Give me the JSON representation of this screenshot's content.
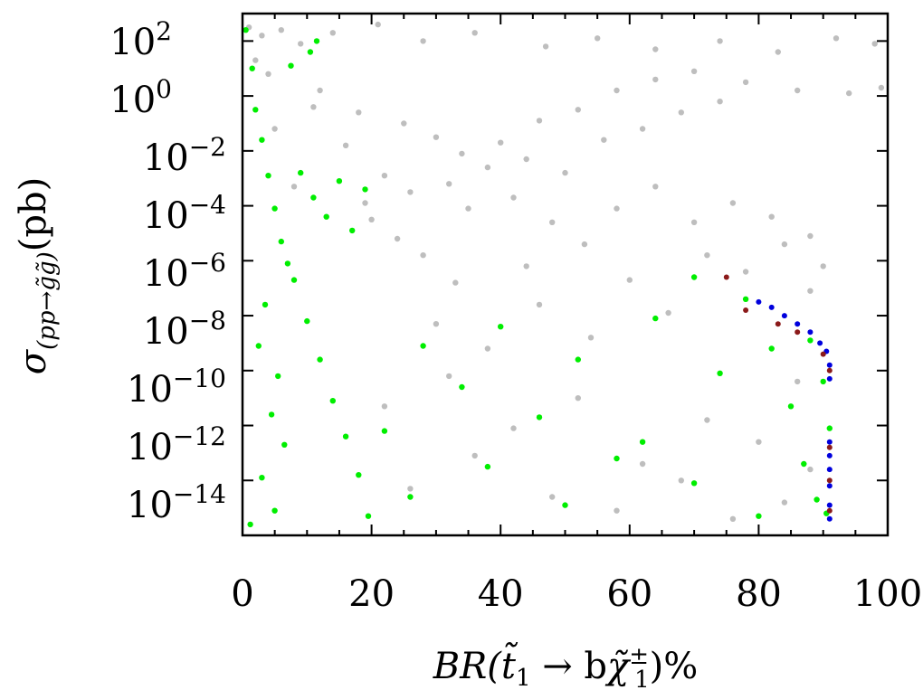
{
  "chart_data": {
    "type": "scatter",
    "title": "",
    "xlabel": {
      "prefix": "BR(",
      "t_part": "t̃",
      "t_sub": "1",
      "arrow": " → b",
      "chi": "χ̃",
      "chi_sup": "±",
      "chi_sub": "1",
      "suffix": ")%"
    },
    "ylabel": {
      "sigma": "σ",
      "sub": "(pp→g̃g̃)",
      "unit": "(pb)"
    },
    "x_range": [
      0,
      100
    ],
    "y_scale": "log10",
    "y_range_exponent": [
      -16,
      3
    ],
    "x_ticks": [
      "0",
      "20",
      "40",
      "60",
      "80",
      "100"
    ],
    "y_ticks": [
      {
        "base": "10",
        "exp": "2"
      },
      {
        "base": "10",
        "exp": "0"
      },
      {
        "base": "10",
        "exp": "−2"
      },
      {
        "base": "10",
        "exp": "−4"
      },
      {
        "base": "10",
        "exp": "−6"
      },
      {
        "base": "10",
        "exp": "−8"
      },
      {
        "base": "10",
        "exp": "−10"
      },
      {
        "base": "10",
        "exp": "−12"
      },
      {
        "base": "10",
        "exp": "−14"
      }
    ],
    "grid": false,
    "legend": "none",
    "series": [
      {
        "color": "#bebebe",
        "points": [
          [
            1,
            2.5
          ],
          [
            3,
            2.2
          ],
          [
            6,
            2.4
          ],
          [
            9,
            1.9
          ],
          [
            14,
            2.3
          ],
          [
            21,
            2.6
          ],
          [
            28,
            2.0
          ],
          [
            36,
            2.3
          ],
          [
            47,
            1.8
          ],
          [
            55,
            2.1
          ],
          [
            64,
            1.7
          ],
          [
            74,
            2.0
          ],
          [
            83,
            1.6
          ],
          [
            92,
            2.1
          ],
          [
            98,
            1.9
          ],
          [
            4,
            0.8
          ],
          [
            12,
            0.2
          ],
          [
            18,
            -0.6
          ],
          [
            25,
            -1.0
          ],
          [
            30,
            -1.5
          ],
          [
            34,
            -2.1
          ],
          [
            40,
            -1.7
          ],
          [
            46,
            -0.9
          ],
          [
            52,
            -0.5
          ],
          [
            58,
            0.2
          ],
          [
            64,
            0.6
          ],
          [
            70,
            0.9
          ],
          [
            78,
            0.5
          ],
          [
            86,
            0.2
          ],
          [
            94,
            0.1
          ],
          [
            99,
            0.3
          ],
          [
            22,
            -2.9
          ],
          [
            26,
            -3.5
          ],
          [
            32,
            -3.2
          ],
          [
            38,
            -2.6
          ],
          [
            44,
            -2.3
          ],
          [
            50,
            -2.8
          ],
          [
            56,
            -1.6
          ],
          [
            62,
            -1.2
          ],
          [
            68,
            -0.6
          ],
          [
            74,
            -0.2
          ],
          [
            20,
            -4.5
          ],
          [
            24,
            -5.2
          ],
          [
            28,
            -5.8
          ],
          [
            35,
            -4.1
          ],
          [
            42,
            -3.7
          ],
          [
            48,
            -4.6
          ],
          [
            53,
            -5.4
          ],
          [
            30,
            -8.3
          ],
          [
            38,
            -9.2
          ],
          [
            46,
            -7.6
          ],
          [
            54,
            -8.8
          ],
          [
            60,
            -6.7
          ],
          [
            66,
            -7.9
          ],
          [
            72,
            -5.8
          ],
          [
            78,
            -6.4
          ],
          [
            84,
            -5.4
          ],
          [
            88,
            -7.1
          ],
          [
            90,
            -6.2
          ],
          [
            22,
            -11.3
          ],
          [
            32,
            -10.2
          ],
          [
            42,
            -12.1
          ],
          [
            52,
            -11.0
          ],
          [
            62,
            -13.4
          ],
          [
            72,
            -11.8
          ],
          [
            80,
            -12.6
          ],
          [
            86,
            -10.4
          ],
          [
            26,
            -14.3
          ],
          [
            36,
            -13.1
          ],
          [
            48,
            -14.6
          ],
          [
            58,
            -15.1
          ],
          [
            68,
            -14.0
          ],
          [
            76,
            -15.4
          ],
          [
            84,
            -14.8
          ],
          [
            88,
            -13.6
          ],
          [
            2,
            1.3
          ],
          [
            5,
            -1.2
          ],
          [
            8,
            -3.3
          ],
          [
            11,
            -0.4
          ],
          [
            16,
            -1.8
          ],
          [
            19,
            -3.9
          ],
          [
            44,
            -6.2
          ],
          [
            33,
            -6.8
          ],
          [
            58,
            -4.1
          ],
          [
            64,
            -3.3
          ],
          [
            70,
            -4.6
          ],
          [
            76,
            -3.9
          ],
          [
            82,
            -4.4
          ],
          [
            88,
            -5.1
          ]
        ]
      },
      {
        "color": "#00ee00",
        "points": [
          [
            0.5,
            2.4
          ],
          [
            1.5,
            1.0
          ],
          [
            2,
            -0.5
          ],
          [
            3,
            -1.6
          ],
          [
            4,
            -2.9
          ],
          [
            5,
            -4.1
          ],
          [
            6,
            -5.3
          ],
          [
            7,
            -6.1
          ],
          [
            3.5,
            -7.6
          ],
          [
            2.5,
            -9.1
          ],
          [
            5.5,
            -10.2
          ],
          [
            4.5,
            -11.6
          ],
          [
            6.5,
            -12.7
          ],
          [
            3,
            -13.9
          ],
          [
            5,
            -15.1
          ],
          [
            1.2,
            -15.6
          ],
          [
            9,
            -2.8
          ],
          [
            11,
            -3.7
          ],
          [
            13,
            -4.4
          ],
          [
            15,
            -3.1
          ],
          [
            17,
            -4.9
          ],
          [
            19,
            -3.4
          ],
          [
            8,
            -6.7
          ],
          [
            10,
            -8.2
          ],
          [
            12,
            -9.6
          ],
          [
            14,
            -11.1
          ],
          [
            16,
            -12.4
          ],
          [
            18,
            -13.8
          ],
          [
            19.5,
            -15.3
          ],
          [
            10.5,
            1.6
          ],
          [
            7.5,
            1.1
          ],
          [
            11.5,
            2.0
          ],
          [
            22,
            -12.2
          ],
          [
            28,
            -9.1
          ],
          [
            34,
            -10.6
          ],
          [
            40,
            -8.4
          ],
          [
            46,
            -11.7
          ],
          [
            52,
            -9.6
          ],
          [
            58,
            -13.2
          ],
          [
            64,
            -8.1
          ],
          [
            70,
            -6.6
          ],
          [
            74,
            -10.1
          ],
          [
            78,
            -7.4
          ],
          [
            82,
            -9.2
          ],
          [
            85,
            -11.3
          ],
          [
            87,
            -13.4
          ],
          [
            89,
            -14.7
          ],
          [
            90.5,
            -15.2
          ],
          [
            26,
            -14.6
          ],
          [
            38,
            -13.5
          ],
          [
            50,
            -14.9
          ],
          [
            62,
            -12.6
          ],
          [
            70,
            -14.1
          ],
          [
            80,
            -15.3
          ],
          [
            88,
            -8.9
          ],
          [
            90,
            -10.4
          ],
          [
            91,
            -12.1
          ]
        ]
      },
      {
        "color": "#0000dd",
        "points": [
          [
            80,
            -7.5
          ],
          [
            82,
            -7.7
          ],
          [
            84,
            -8.0
          ],
          [
            86,
            -8.3
          ],
          [
            88,
            -8.6
          ],
          [
            89.5,
            -9.0
          ],
          [
            90.5,
            -9.3
          ],
          [
            91,
            -9.8
          ],
          [
            91,
            -10.3
          ],
          [
            91,
            -12.6
          ],
          [
            91,
            -13.1
          ],
          [
            91,
            -13.6
          ],
          [
            91,
            -14.2
          ],
          [
            91,
            -14.9
          ],
          [
            91,
            -15.4
          ]
        ]
      },
      {
        "color": "#8b1a1a",
        "points": [
          [
            75,
            -6.6
          ],
          [
            78,
            -7.8
          ],
          [
            83,
            -8.3
          ],
          [
            86,
            -8.6
          ],
          [
            90,
            -9.4
          ],
          [
            91,
            -10.0
          ],
          [
            91,
            -12.8
          ],
          [
            91,
            -14.0
          ],
          [
            91,
            -15.1
          ]
        ]
      }
    ]
  }
}
